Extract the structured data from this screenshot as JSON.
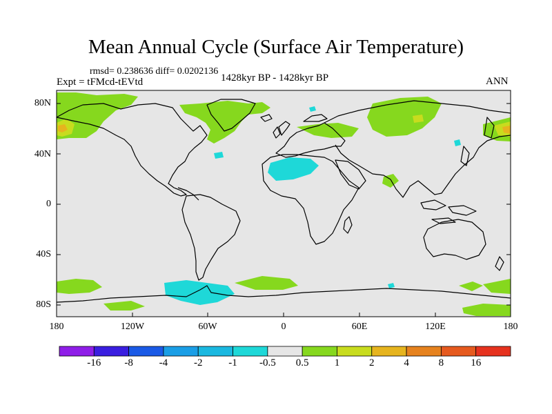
{
  "title": "Mean Annual Cycle (Surface Air Temperature)",
  "stats": "rmsd= 0.238636 diff= 0.0202136",
  "experiment": "Expt = tFMcd-tEVtd",
  "period": "1428kyr BP - 1428kyr BP",
  "season": "ANN",
  "map": {
    "lat_labels": [
      "80N",
      "40N",
      "0",
      "40S",
      "80S"
    ],
    "lon_labels": [
      "180",
      "120W",
      "60W",
      "0",
      "60E",
      "120E",
      "180"
    ],
    "background_color": "#e6e6e6"
  },
  "colorbar": {
    "labels": [
      "-16",
      "-8",
      "-4",
      "-2",
      "-1",
      "-0.5",
      "0.5",
      "1",
      "2",
      "4",
      "8",
      "16"
    ],
    "colors": [
      "#8f1ee8",
      "#3a1ee0",
      "#1a5ae6",
      "#1a9ee6",
      "#1ab8e0",
      "#1ed8d8",
      "#e6e6e6",
      "#86d81e",
      "#c8dc1e",
      "#e6b41e",
      "#e6821e",
      "#e65a1e",
      "#e6321e"
    ]
  }
}
